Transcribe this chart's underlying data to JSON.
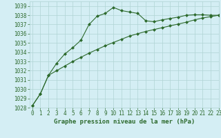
{
  "x": [
    0,
    1,
    2,
    3,
    4,
    5,
    6,
    7,
    8,
    9,
    10,
    11,
    12,
    13,
    14,
    15,
    16,
    17,
    18,
    19,
    20,
    21,
    22,
    23
  ],
  "line1": [
    1028.2,
    1029.5,
    1031.5,
    1032.8,
    1033.8,
    1034.5,
    1035.3,
    1037.0,
    1037.9,
    1038.2,
    1038.85,
    1038.5,
    1038.35,
    1038.2,
    1037.4,
    1037.3,
    1037.5,
    1037.65,
    1037.8,
    1038.0,
    1038.05,
    1038.05,
    1038.0,
    1038.0
  ],
  "line2": [
    1028.2,
    1029.5,
    1031.5,
    1032.0,
    1032.5,
    1033.0,
    1033.45,
    1033.9,
    1034.3,
    1034.7,
    1035.05,
    1035.4,
    1035.75,
    1036.0,
    1036.25,
    1036.45,
    1036.65,
    1036.85,
    1037.05,
    1037.25,
    1037.5,
    1037.7,
    1037.85,
    1038.0
  ],
  "line_color": "#2d6a2d",
  "bg_color": "#d4eef4",
  "grid_color": "#b0d4d4",
  "xlabel": "Graphe pression niveau de la mer (hPa)",
  "ylim": [
    1028,
    1039.5
  ],
  "yticks": [
    1028,
    1029,
    1030,
    1031,
    1032,
    1033,
    1034,
    1035,
    1036,
    1037,
    1038,
    1039
  ],
  "xlim": [
    -0.3,
    23
  ],
  "xticks": [
    0,
    1,
    2,
    3,
    4,
    5,
    6,
    7,
    8,
    9,
    10,
    11,
    12,
    13,
    14,
    15,
    16,
    17,
    18,
    19,
    20,
    21,
    22,
    23
  ],
  "tick_fontsize": 5.5,
  "xlabel_fontsize": 6.5,
  "marker": "D",
  "markersize": 2.0,
  "linewidth": 0.8
}
